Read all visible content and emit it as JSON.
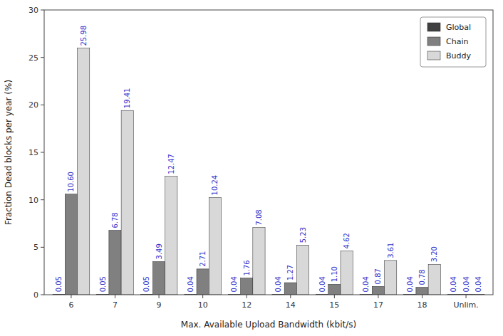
{
  "chart_data": {
    "type": "bar",
    "categories": [
      "6",
      "7",
      "9",
      "10",
      "12",
      "14",
      "15",
      "17",
      "18",
      "Unlim."
    ],
    "series": [
      {
        "name": "Global",
        "color": "#404040",
        "values": [
          0.05,
          0.05,
          0.05,
          0.04,
          0.04,
          0.04,
          0.04,
          0.04,
          0.04,
          0.04
        ],
        "value_labels": [
          "0.05",
          "0.05",
          "0.05",
          "0.04",
          "0.04",
          "0.04",
          "0.04",
          "0.04",
          "0.04",
          "0.04"
        ]
      },
      {
        "name": "Chain",
        "color": "#808080",
        "values": [
          10.6,
          6.78,
          3.49,
          2.71,
          1.76,
          1.27,
          1.1,
          0.87,
          0.78,
          0.04
        ],
        "value_labels": [
          "10.60",
          "6.78",
          "3.49",
          "2.71",
          "1.76",
          "1.27",
          "1.10",
          "0.87",
          "0.78",
          "0.04"
        ]
      },
      {
        "name": "Buddy",
        "color": "#d8d8d8",
        "values": [
          25.98,
          19.41,
          12.47,
          10.24,
          7.08,
          5.23,
          4.62,
          3.61,
          3.2,
          0.04
        ],
        "value_labels": [
          "25.98",
          "19.41",
          "12.47",
          "10.24",
          "7.08",
          "5.23",
          "4.62",
          "3.61",
          "3.20",
          "0.04"
        ]
      }
    ],
    "xlabel": "Max. Available Upload Bandwidth (kbit/s)",
    "ylabel": "Fraction Dead blocks per year (%)",
    "ylim": [
      0,
      30
    ],
    "yticks": [
      0,
      5,
      10,
      15,
      20,
      25,
      30
    ],
    "grid": false,
    "legend": "upper right",
    "data_labels": true
  }
}
